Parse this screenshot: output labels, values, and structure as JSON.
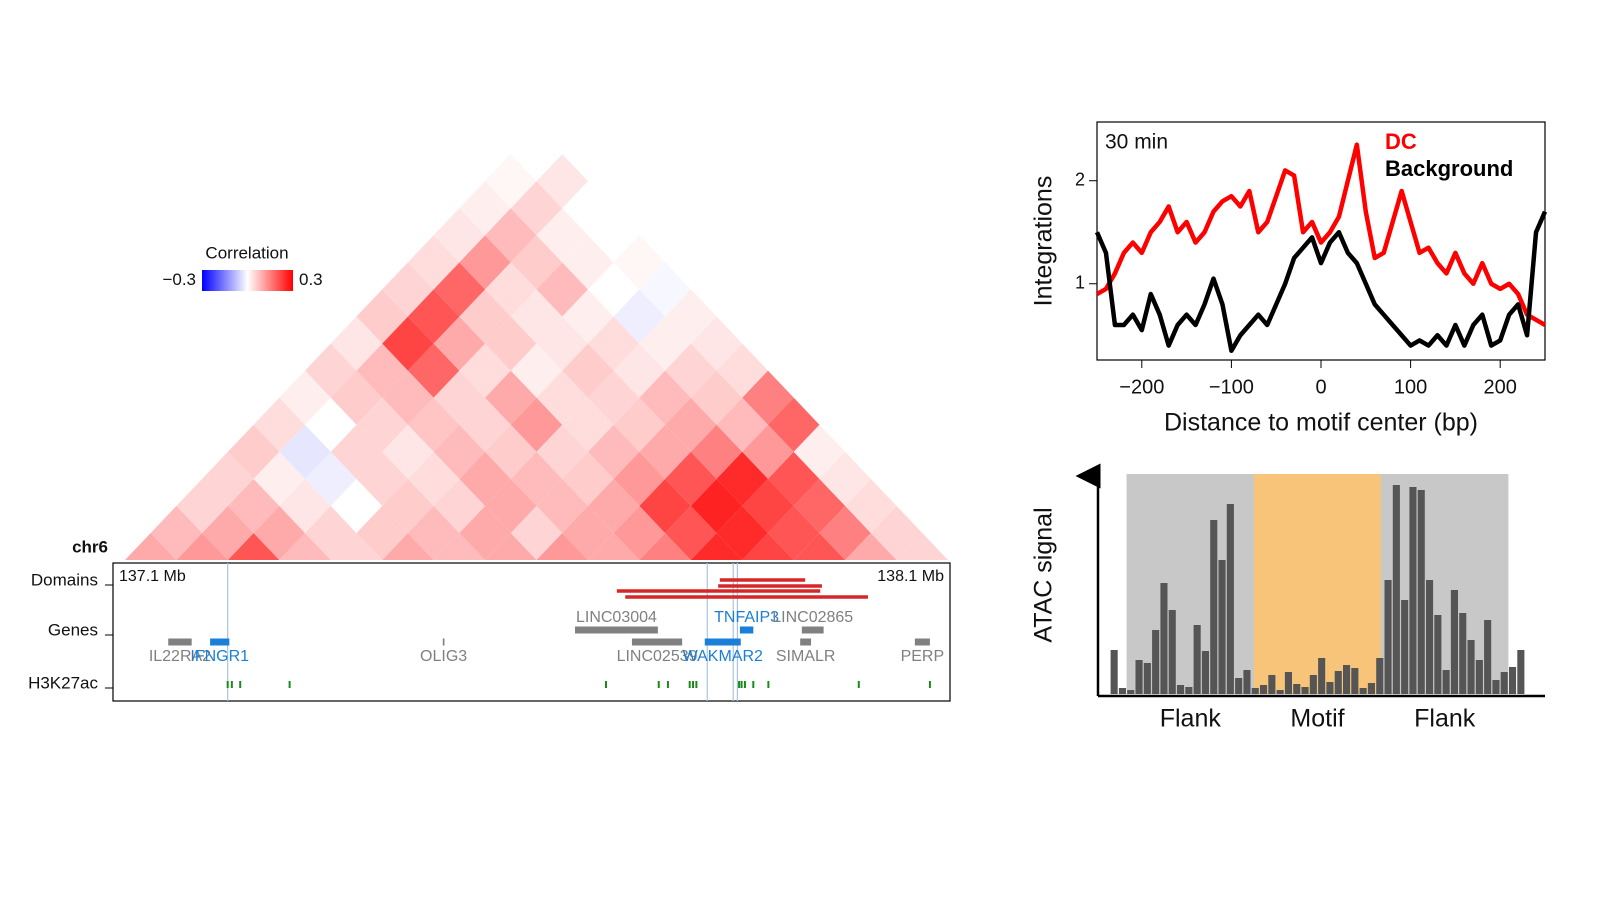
{
  "chart_data": [
    {
      "type": "triangle-heatmap",
      "chromosome": "chr6",
      "legend_title": "Correlation",
      "clim": [
        -0.3,
        0.3
      ],
      "cticks": [
        {
          "value": -0.3,
          "label": "−0.3"
        },
        0.3
      ],
      "colors": [
        "#0000ff",
        "#ffffff",
        "#ff0000"
      ],
      "rows": [
        [
          0.1,
          0.12,
          0.2,
          0.08,
          0.05,
          0.1,
          0.08,
          0.1,
          0.12,
          0.1,
          0.15,
          0.25,
          0.22,
          0.2,
          0.1,
          0.05
        ],
        [
          0.08,
          0.1,
          0.1,
          0.05,
          0.06,
          0.08,
          0.1,
          0.05,
          0.1,
          0.12,
          0.2,
          0.25,
          0.2,
          0.15,
          0.05
        ],
        [
          0.05,
          0.08,
          0.03,
          0.0,
          0.06,
          0.05,
          0.1,
          0.08,
          0.1,
          0.22,
          0.26,
          0.22,
          0.18,
          0.04
        ],
        [
          0.05,
          0.02,
          -0.02,
          0.05,
          0.04,
          0.1,
          0.08,
          0.06,
          0.12,
          0.2,
          0.25,
          0.2,
          0.03
        ],
        [
          0.06,
          -0.03,
          0.05,
          0.03,
          0.08,
          0.06,
          0.05,
          0.08,
          0.1,
          0.15,
          0.12,
          0.02
        ],
        [
          0.04,
          0.0,
          0.05,
          0.07,
          0.05,
          0.12,
          0.04,
          0.06,
          0.1,
          0.08,
          0.18
        ],
        [
          0.02,
          0.06,
          0.08,
          0.05,
          0.1,
          0.04,
          0.05,
          0.08,
          0.06,
          0.15
        ],
        [
          0.05,
          0.08,
          0.18,
          0.04,
          0.02,
          0.06,
          0.03,
          0.05,
          0.04
        ],
        [
          0.03,
          0.22,
          0.1,
          0.06,
          0.03,
          0.04,
          0.02,
          0.03
        ],
        [
          0.06,
          0.2,
          0.06,
          0.03,
          0.02,
          -0.02,
          0.02
        ],
        [
          0.05,
          0.18,
          0.04,
          0.08,
          0.0,
          -0.01
        ],
        [
          0.04,
          0.12,
          0.06,
          0.02,
          0.01
        ],
        [
          0.03,
          0.08,
          0.02,
          0.0
        ],
        [
          0.02,
          0.05,
          0.0
        ],
        [
          0.01,
          0.03
        ],
        [
          0.0
        ]
      ]
    },
    {
      "type": "genome-track",
      "xlim": [
        137.1,
        138.1
      ],
      "start_label": "137.1 Mb",
      "end_label": "138.1 Mb",
      "track_labels": [
        "Domains",
        "Genes",
        "H3K27ac"
      ],
      "domains": {
        "color": "#d62728",
        "ranges": [
          [
            137.825,
            137.927
          ],
          [
            137.823,
            137.947
          ],
          [
            137.702,
            137.945
          ],
          [
            137.712,
            138.002
          ]
        ]
      },
      "genes": [
        {
          "name": "IL22RA2",
          "start": 137.166,
          "end": 137.194,
          "color": "#808080"
        },
        {
          "name": "IFNGR1",
          "start": 137.216,
          "end": 137.239,
          "color": "#1a7fd8"
        },
        {
          "name": "OLIG3",
          "start": 137.494,
          "end": 137.496,
          "color": "#808080"
        },
        {
          "name": "LINC03004",
          "start": 137.652,
          "end": 137.751,
          "color": "#808080"
        },
        {
          "name": "LINC02539",
          "start": 137.72,
          "end": 137.78,
          "color": "#808080"
        },
        {
          "name": "TNFAIP3",
          "start": 137.849,
          "end": 137.865,
          "color": "#1a7fd8"
        },
        {
          "name": "WAKMAR2",
          "start": 137.807,
          "end": 137.85,
          "color": "#1a7fd8"
        },
        {
          "name": "LINC02865",
          "start": 137.923,
          "end": 137.949,
          "color": "#808080"
        },
        {
          "name": "SIMALR",
          "start": 137.921,
          "end": 137.934,
          "color": "#808080"
        },
        {
          "name": "PERP",
          "start": 138.058,
          "end": 138.076,
          "color": "#808080"
        }
      ],
      "h3k27ac": {
        "color": "#1a8a1a",
        "positions": [
          137.237,
          137.242,
          137.252,
          137.311,
          137.689,
          137.752,
          137.763,
          137.789,
          137.793,
          137.797,
          137.848,
          137.851,
          137.855,
          137.865,
          137.883,
          137.991,
          138.076
        ]
      },
      "highlights": {
        "color": "#a8c4e0",
        "positions": [
          137.237,
          137.81,
          137.841,
          137.846
        ]
      }
    },
    {
      "type": "line",
      "title": "30 min",
      "xlabel": "Distance to motif center (bp)",
      "ylabel": "Integrations",
      "xlim": [
        -250,
        250
      ],
      "ylim": [
        0.26,
        2.57
      ],
      "xticks": [
        {
          "value": -200,
          "label": "−200"
        },
        {
          "value": -100,
          "label": "−100"
        },
        0,
        100,
        200
      ],
      "yticks": [
        1,
        2
      ],
      "x": [
        -250,
        -240,
        -230,
        -220,
        -210,
        -200,
        -190,
        -180,
        -170,
        -160,
        -150,
        -140,
        -130,
        -120,
        -110,
        -100,
        -90,
        -80,
        -70,
        -60,
        -50,
        -40,
        -30,
        -20,
        -10,
        0,
        10,
        20,
        30,
        40,
        50,
        60,
        70,
        80,
        90,
        100,
        110,
        120,
        130,
        140,
        150,
        160,
        170,
        180,
        190,
        200,
        210,
        220,
        230,
        240,
        250
      ],
      "series": [
        {
          "name": "DC",
          "color": "#ff0000",
          "values": [
            0.9,
            0.95,
            1.1,
            1.3,
            1.4,
            1.3,
            1.5,
            1.6,
            1.75,
            1.5,
            1.6,
            1.4,
            1.5,
            1.7,
            1.8,
            1.85,
            1.75,
            1.9,
            1.5,
            1.6,
            1.85,
            2.1,
            2.05,
            1.5,
            1.6,
            1.4,
            1.5,
            1.65,
            2.0,
            2.35,
            1.7,
            1.25,
            1.3,
            1.6,
            1.9,
            1.6,
            1.3,
            1.35,
            1.2,
            1.1,
            1.3,
            1.1,
            1.0,
            1.2,
            1.0,
            0.95,
            1.0,
            0.9,
            0.7,
            0.65,
            0.6
          ]
        },
        {
          "name": "Background",
          "color": "#000000",
          "values": [
            1.5,
            1.3,
            0.6,
            0.6,
            0.7,
            0.55,
            0.9,
            0.7,
            0.4,
            0.6,
            0.7,
            0.6,
            0.8,
            1.05,
            0.8,
            0.35,
            0.5,
            0.6,
            0.7,
            0.6,
            0.8,
            1.0,
            1.25,
            1.35,
            1.45,
            1.2,
            1.4,
            1.5,
            1.3,
            1.2,
            1.0,
            0.8,
            0.7,
            0.6,
            0.5,
            0.4,
            0.45,
            0.4,
            0.5,
            0.4,
            0.6,
            0.4,
            0.6,
            0.7,
            0.4,
            0.45,
            0.7,
            0.8,
            0.5,
            1.5,
            1.7
          ]
        }
      ]
    },
    {
      "type": "bar",
      "ylabel": "ATAC signal",
      "color": "#555555",
      "xlim": [
        0,
        50
      ],
      "ylim": [
        0,
        220
      ],
      "values": [
        44,
        6,
        4,
        34,
        31,
        64,
        111,
        84,
        9,
        7,
        69,
        43,
        174,
        134,
        190,
        16,
        24,
        6,
        9,
        19,
        4,
        22,
        10,
        7,
        19,
        36,
        12,
        23,
        29,
        26,
        6,
        11,
        36,
        114,
        209,
        94,
        207,
        204,
        114,
        79,
        24,
        104,
        81,
        54,
        34,
        74,
        14,
        22,
        27,
        44
      ],
      "regions": [
        {
          "label": "Flank",
          "color": "#c8c8c8",
          "start": 2,
          "end": 17.35
        },
        {
          "label": "Motif",
          "color": "#f7c47a",
          "start": 17.35,
          "end": 32.65
        },
        {
          "label": "Flank",
          "color": "#c8c8c8",
          "start": 32.65,
          "end": 48
        }
      ]
    }
  ]
}
